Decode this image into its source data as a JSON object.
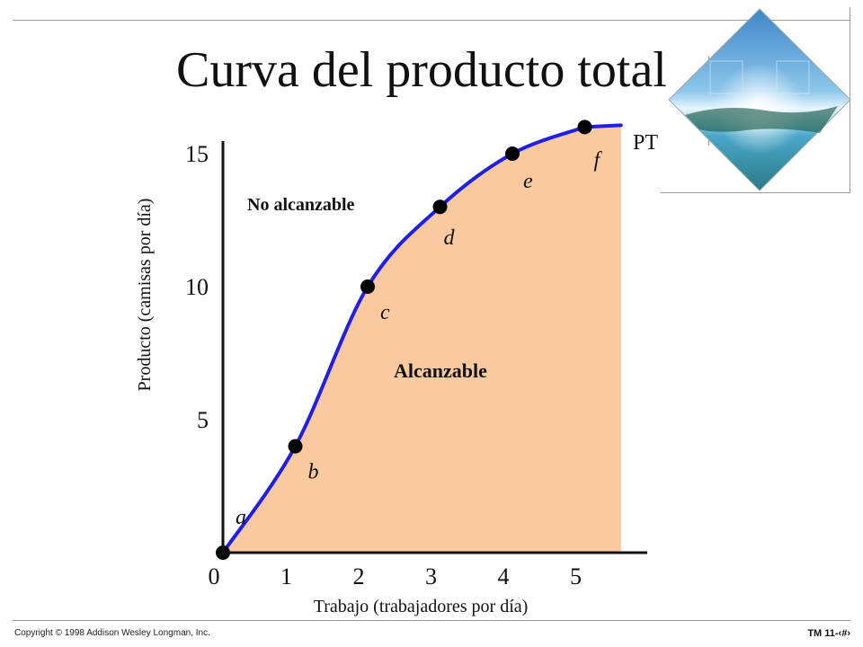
{
  "title": "Curva del producto total",
  "footer": {
    "copyright": "Copyright © 1998 Addison Wesley Longman, Inc.",
    "slide_number": "TM 11-‹#›"
  },
  "colors": {
    "curve": "#1f1fe6",
    "attainable_fill": "#f9c9a0",
    "axis": "#111111"
  },
  "chart_data": {
    "type": "area",
    "xlabel": "Trabajo (trabajadores por día)",
    "ylabel": "Producto (camisas por día)",
    "x_ticks": [
      "0",
      "1",
      "2",
      "3",
      "4",
      "5"
    ],
    "y_ticks": [
      "5",
      "10",
      "15"
    ],
    "xlim": [
      0,
      5.8
    ],
    "ylim": [
      0,
      15.5
    ],
    "series": [
      {
        "name": "PT",
        "x": [
          0,
          1,
          2,
          3,
          4,
          5
        ],
        "y": [
          0,
          4,
          10,
          13,
          15,
          16
        ]
      }
    ],
    "point_labels": [
      "a",
      "b",
      "c",
      "d",
      "e",
      "f"
    ],
    "regions": {
      "attainable": "Alcanzable",
      "unattainable": "No alcanzable"
    }
  }
}
